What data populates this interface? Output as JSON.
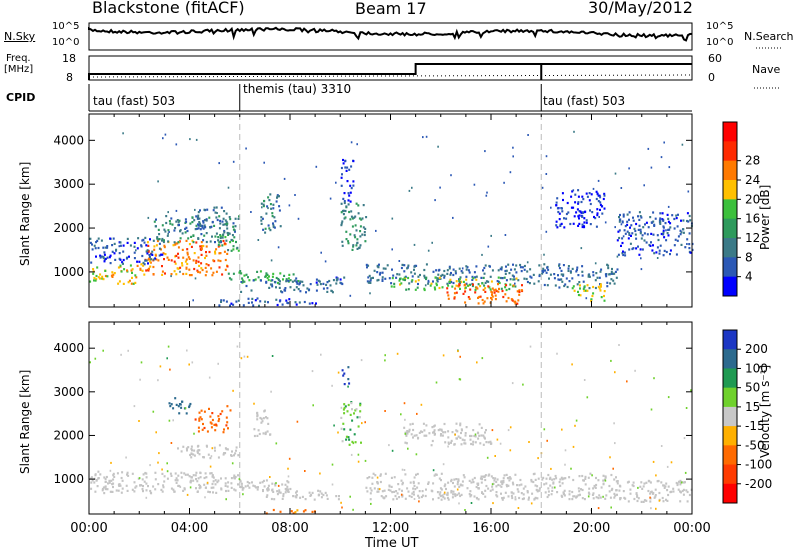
{
  "header": {
    "station": "Blackstone (fitACF)",
    "beam": "Beam 17",
    "date": "30/May/2012"
  },
  "nsky": {
    "left_label": "N.Sky",
    "left_ticks": [
      "10^5",
      "10^0"
    ],
    "right_ticks": [
      "10^5",
      "10^0"
    ],
    "right_label": "N.Search"
  },
  "freq": {
    "left_label": "Freq.",
    "unit": "[MHz]",
    "left_ticks": [
      "18",
      "8"
    ],
    "right_ticks": [
      "60",
      "0"
    ],
    "right_label": "Nave"
  },
  "cpid": {
    "label": "CPID",
    "segments": [
      {
        "name": "tau (fast) 503",
        "start_hour": 0
      },
      {
        "name": "themis (tau) 3310",
        "start_hour": 6
      },
      {
        "name": "tau (fast) 503",
        "start_hour": 18
      }
    ]
  },
  "colors": {
    "power": [
      "#0000ff",
      "#2b58b5",
      "#3b7a87",
      "#2e9a5c",
      "#3cc03c",
      "#ffc000",
      "#ff7a00",
      "#ff2a00",
      "#ff0000"
    ],
    "velocity": [
      "#1c37c4",
      "#2c6a8e",
      "#1f9a52",
      "#6fd12c",
      "#c8c8c8",
      "#ffb000",
      "#ff6a00",
      "#ff3b00",
      "#ff0000"
    ],
    "grey": "#c4c4c4"
  },
  "xaxis": {
    "label": "Time UT",
    "ticks": [
      "00:00",
      "04:00",
      "08:00",
      "12:00",
      "16:00",
      "20:00",
      "00:00"
    ]
  },
  "chart_data": [
    {
      "type": "heatmap",
      "panel": "power",
      "ylabel": "Slant Range [km]",
      "yticks": [
        "1000",
        "2000",
        "3000",
        "4000"
      ],
      "ylim": [
        200,
        4600
      ],
      "xlim_hours": [
        0,
        24
      ],
      "colorbar": {
        "label": "Power [dB]",
        "ticks": [
          "4",
          "8",
          "12",
          "16",
          "20",
          "24",
          "28"
        ],
        "range": [
          0,
          32
        ]
      },
      "bands": [
        {
          "t0": 0,
          "t1": 2.2,
          "r0": 750,
          "r1": 1200,
          "value": 22
        },
        {
          "t0": 2.2,
          "t1": 5.5,
          "r0": 950,
          "r1": 1750,
          "value": 26
        },
        {
          "t0": 5.0,
          "t1": 6.0,
          "r0": 1500,
          "r1": 1900,
          "value": 14
        },
        {
          "t0": 0,
          "t1": 3.0,
          "r0": 1200,
          "r1": 1800,
          "value": 6
        },
        {
          "t0": 2.5,
          "t1": 6.0,
          "r0": 1700,
          "r1": 2300,
          "value": 10
        },
        {
          "t0": 4.2,
          "t1": 5.5,
          "r0": 2000,
          "r1": 2500,
          "value": 8
        },
        {
          "t0": 6.8,
          "t1": 7.6,
          "r0": 1900,
          "r1": 2800,
          "value": 10
        },
        {
          "t0": 5.5,
          "t1": 8.3,
          "r0": 750,
          "r1": 1050,
          "value": 16
        },
        {
          "t0": 6.0,
          "t1": 10.0,
          "r0": 560,
          "r1": 840,
          "value": 8
        },
        {
          "t0": 5.0,
          "t1": 9.0,
          "r0": 250,
          "r1": 420,
          "value": 6
        },
        {
          "t0": 8.2,
          "t1": 10.2,
          "r0": 750,
          "r1": 900,
          "value": 6
        },
        {
          "t0": 10.0,
          "t1": 11.0,
          "r0": 1500,
          "r1": 2600,
          "value": 12
        },
        {
          "t0": 10.0,
          "t1": 10.5,
          "r0": 2600,
          "r1": 3600,
          "value": 4
        },
        {
          "t0": 11.0,
          "t1": 18.0,
          "r0": 750,
          "r1": 1200,
          "value": 8
        },
        {
          "t0": 12.0,
          "t1": 17.0,
          "r0": 600,
          "r1": 900,
          "value": 18
        },
        {
          "t0": 14.2,
          "t1": 17.2,
          "r0": 300,
          "r1": 750,
          "value": 28
        },
        {
          "t0": 18.0,
          "t1": 21.0,
          "r0": 650,
          "r1": 1200,
          "value": 8
        },
        {
          "t0": 19.2,
          "t1": 20.5,
          "r0": 350,
          "r1": 750,
          "value": 20
        },
        {
          "t0": 21.0,
          "t1": 24.0,
          "r0": 1400,
          "r1": 2400,
          "value": 6
        },
        {
          "t0": 18.5,
          "t1": 20.5,
          "r0": 2000,
          "r1": 2900,
          "value": 4
        }
      ]
    },
    {
      "type": "heatmap",
      "panel": "velocity",
      "ylabel": "Slant Range [km]",
      "yticks": [
        "1000",
        "2000",
        "3000",
        "4000"
      ],
      "ylim": [
        200,
        4600
      ],
      "xlim_hours": [
        0,
        24
      ],
      "colorbar": {
        "label": "Velocity [m s⁻¹]",
        "ticks": [
          "200",
          "100",
          "50",
          "15",
          "-15",
          "-50",
          "-100",
          "-200"
        ],
        "range": [
          -250,
          250
        ]
      },
      "ground_scatter_bands": [
        {
          "t0": 0,
          "t1": 6.0,
          "r0": 700,
          "r1": 1200
        },
        {
          "t0": 3.5,
          "t1": 6.0,
          "r0": 1500,
          "r1": 1800
        },
        {
          "t0": 5.0,
          "t1": 8.0,
          "r0": 750,
          "r1": 1000
        },
        {
          "t0": 7.0,
          "t1": 10.0,
          "r0": 550,
          "r1": 800
        },
        {
          "t0": 11.0,
          "t1": 21.0,
          "r0": 550,
          "r1": 1150
        },
        {
          "t0": 21.0,
          "t1": 24.0,
          "r0": 500,
          "r1": 1000
        },
        {
          "t0": 12.5,
          "t1": 16.0,
          "r0": 1800,
          "r1": 2300
        },
        {
          "t0": 6.5,
          "t1": 7.2,
          "r0": 2000,
          "r1": 2600
        }
      ],
      "ionospheric_bands": [
        {
          "t0": 4.2,
          "t1": 5.6,
          "r0": 2100,
          "r1": 2700,
          "value": -80
        },
        {
          "t0": 3.0,
          "t1": 4.0,
          "r0": 2500,
          "r1": 2900,
          "value": 150
        },
        {
          "t0": 10.0,
          "t1": 10.8,
          "r0": 1800,
          "r1": 2800,
          "value": 30
        },
        {
          "t0": 7.0,
          "t1": 9.0,
          "r0": 200,
          "r1": 320,
          "value": -60
        },
        {
          "t0": 10.0,
          "t1": 10.4,
          "r0": 3200,
          "r1": 3600,
          "value": 200
        }
      ]
    }
  ]
}
